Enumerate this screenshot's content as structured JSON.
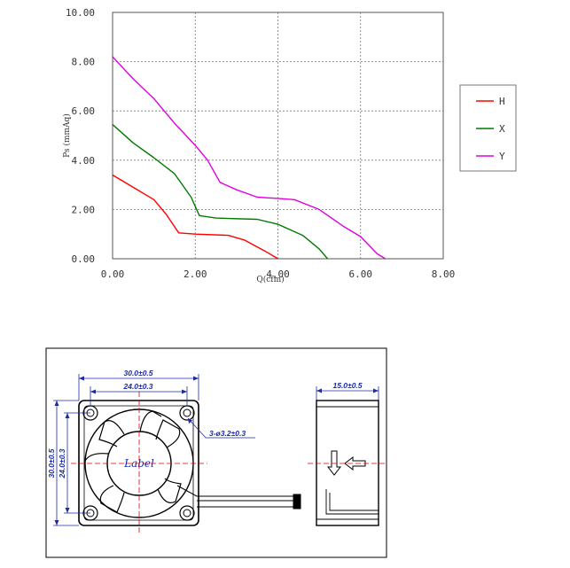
{
  "chart_data": {
    "type": "line",
    "xlabel": "Q(cfm)",
    "ylabel": "Ps (mmAq)",
    "xlim": [
      0,
      8
    ],
    "ylim": [
      0,
      10
    ],
    "xticks": [
      "0.00",
      "2.00",
      "4.00",
      "6.00",
      "8.00"
    ],
    "yticks": [
      "0.00",
      "2.00",
      "4.00",
      "6.00",
      "8.00",
      "10.00"
    ],
    "grid": true,
    "legend_position": "right",
    "series": [
      {
        "name": "H",
        "color": "#ff0000",
        "x": [
          0,
          0.5,
          1.0,
          1.3,
          1.6,
          2.0,
          2.8,
          3.2,
          3.7,
          4.0
        ],
        "y": [
          3.4,
          2.9,
          2.4,
          1.8,
          1.05,
          1.0,
          0.95,
          0.75,
          0.3,
          0.0
        ]
      },
      {
        "name": "X",
        "color": "#007a00",
        "x": [
          0,
          0.5,
          1.0,
          1.5,
          1.9,
          2.1,
          2.5,
          3.5,
          4.0,
          4.6,
          5.0,
          5.2
        ],
        "y": [
          5.45,
          4.7,
          4.1,
          3.45,
          2.5,
          1.75,
          1.65,
          1.6,
          1.4,
          0.95,
          0.4,
          0.0
        ]
      },
      {
        "name": "Y",
        "color": "#e000e0",
        "x": [
          0,
          0.5,
          1.0,
          1.5,
          2.0,
          2.3,
          2.6,
          3.0,
          3.5,
          4.0,
          4.4,
          5.0,
          5.6,
          6.0,
          6.4,
          6.6
        ],
        "y": [
          8.2,
          7.3,
          6.5,
          5.5,
          4.6,
          4.0,
          3.1,
          2.8,
          2.5,
          2.45,
          2.4,
          2.0,
          1.3,
          0.9,
          0.2,
          0.0
        ]
      }
    ]
  },
  "drawing": {
    "dim_width_outer": "30.0±0.5",
    "dim_width_inner": "24.0±0.3",
    "dim_height_outer": "30.0±0.5",
    "dim_height_inner": "24.0±0.3",
    "dim_holes": "3-ø3.2±0.3",
    "dim_depth": "15.0±0.5",
    "label_text": "Label",
    "line_color": "#000000",
    "dim_color": "#1a2aa8",
    "center_color": "#e00000"
  }
}
